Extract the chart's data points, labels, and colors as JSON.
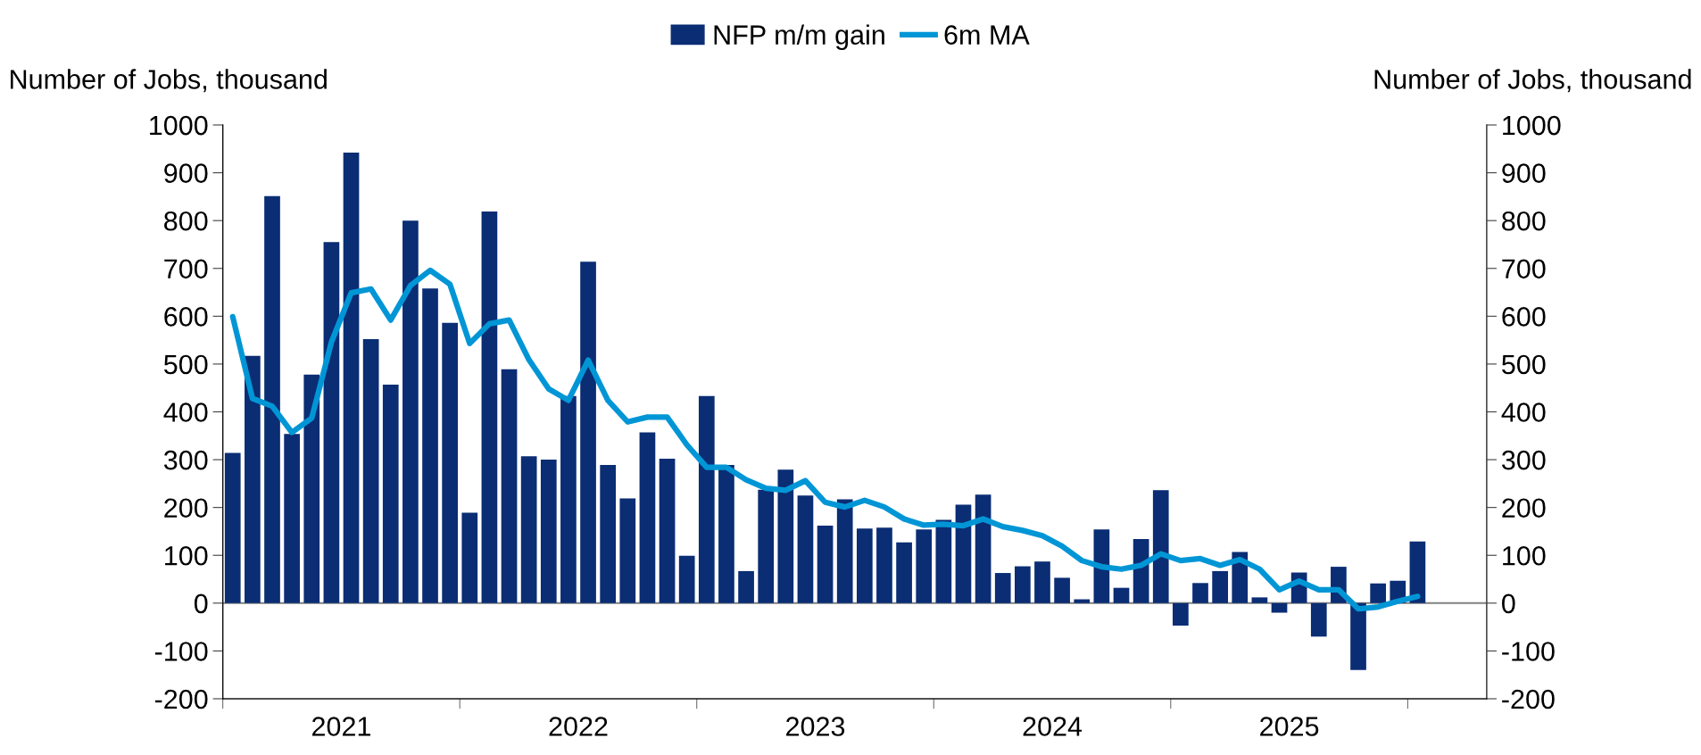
{
  "chart_data": {
    "type": "bar",
    "categories": [
      null,
      null,
      null,
      null,
      null,
      null,
      null,
      null,
      null,
      null,
      null,
      null,
      null,
      null,
      null,
      null,
      null,
      null,
      null,
      null,
      null,
      null,
      null,
      null,
      null,
      null,
      null,
      null,
      null,
      null,
      null,
      null,
      null,
      null,
      null,
      null,
      null,
      null,
      null,
      null,
      null,
      null,
      null,
      null,
      null,
      null,
      null,
      null,
      null,
      null,
      null,
      null,
      null,
      null,
      null,
      null,
      null,
      null,
      null,
      null,
      null
    ],
    "annotations": [
      "2021",
      "2022",
      "2023",
      "2024",
      "2025"
    ],
    "series": [
      {
        "name": "NFP m/m gain",
        "color": "#0a2d74",
        "values": [
          314,
          517,
          851,
          354,
          478,
          755,
          942,
          552,
          457,
          800,
          658,
          586,
          189,
          819,
          489,
          307,
          300,
          433,
          714,
          289,
          219,
          357,
          302,
          99,
          433,
          289,
          67,
          237,
          279,
          225,
          162,
          217,
          156,
          158,
          127,
          154,
          174,
          206,
          227,
          63,
          77,
          87,
          53,
          8,
          154,
          32,
          134,
          236,
          -47,
          42,
          67,
          107,
          12,
          -20,
          64,
          -70,
          76,
          -140,
          41,
          47,
          129
        ]
      },
      {
        "name": "6m MA",
        "type": "line",
        "color": "#0096d6",
        "values": [
          599,
          428,
          412,
          357,
          387,
          546,
          649,
          657,
          592,
          664,
          696,
          667,
          543,
          584,
          592,
          509,
          448,
          424,
          508,
          424,
          379,
          389,
          389,
          331,
          284,
          284,
          258,
          240,
          236,
          256,
          211,
          201,
          215,
          201,
          176,
          163,
          165,
          162,
          176,
          160,
          152,
          141,
          119,
          89,
          76,
          71,
          79,
          103,
          89,
          93,
          79,
          91,
          71,
          28,
          46,
          28,
          28,
          -12,
          -8,
          4,
          14
        ]
      }
    ],
    "ylabel": "Number of Jobs, thousand",
    "y2label": "Number of Jobs, thousand",
    "ylim": [
      -200,
      1000
    ],
    "yticks": [
      -200,
      -100,
      0,
      100,
      200,
      300,
      400,
      500,
      600,
      700,
      800,
      900,
      1000
    ],
    "y2lim": [
      -200,
      1000
    ],
    "y2ticks": [
      -200,
      -100,
      0,
      100,
      200,
      300,
      400,
      500,
      600,
      700,
      800,
      900,
      1000
    ],
    "ref_lines": [
      {
        "axis": "y",
        "value": 0,
        "color": "#808080"
      }
    ],
    "legend": "top",
    "grid": false
  }
}
